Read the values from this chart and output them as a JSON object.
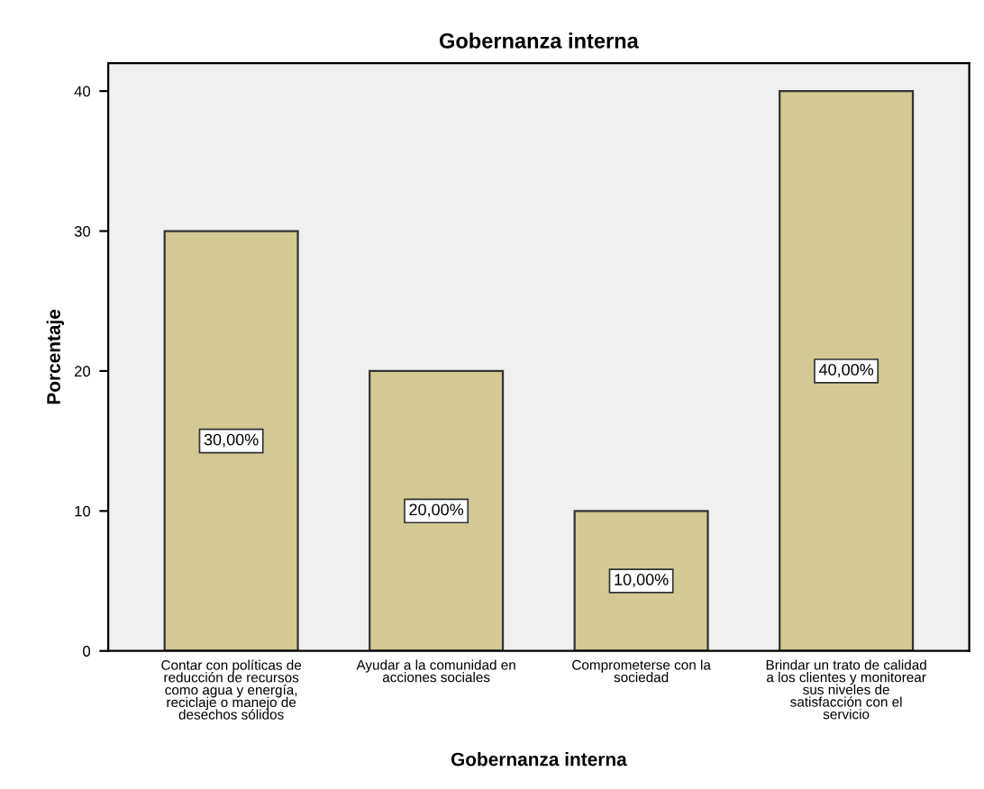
{
  "chart_data": {
    "type": "bar",
    "title": "Gobernanza interna",
    "xlabel": "Gobernanza interna",
    "ylabel": "Porcentaje",
    "categories": [
      "Contar con políticas de\nreducción de recursos\ncomo agua y energía,\nreciclaje o manejo de\ndesechos sólidos",
      "Ayudar a la comunidad en\nacciones sociales",
      "Comprometerse con la\nsociedad",
      "Brindar un trato de calidad\na los clientes y monitorear\nsus niveles de\nsatisfacción con el\nservicio"
    ],
    "values": [
      30,
      20,
      10,
      40
    ],
    "value_labels": [
      "30,00%",
      "20,00%",
      "10,00%",
      "40,00%"
    ],
    "color": "#d2c994",
    "ylim": [
      0,
      42
    ],
    "yticks": [
      0,
      10,
      20,
      30,
      40
    ],
    "grid": false
  }
}
